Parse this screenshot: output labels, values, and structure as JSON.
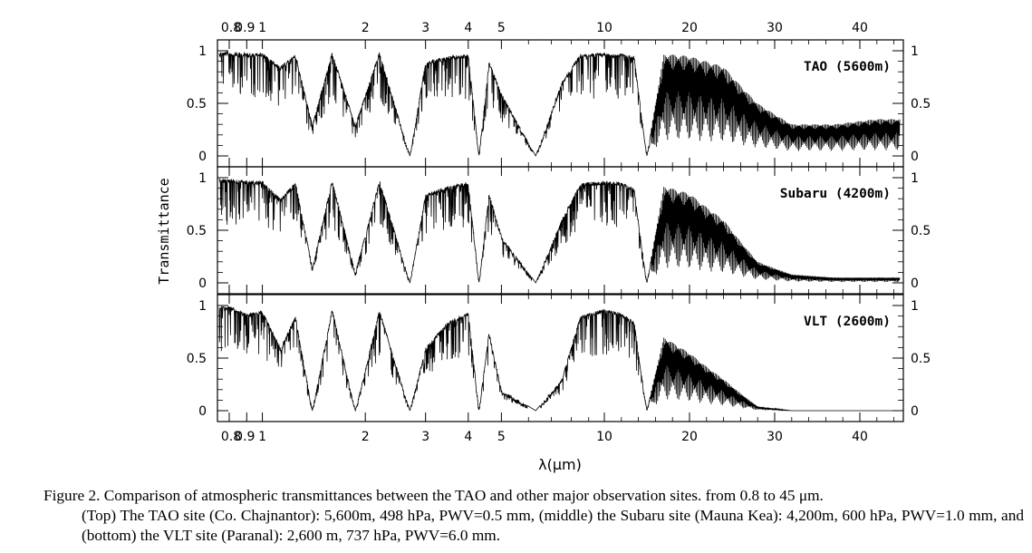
{
  "chart_data": {
    "type": "line",
    "ylabel": "Transmittance",
    "xlabel": "λ(μm)",
    "x_scale": "piecewise: logarithmic 0.8–10 μm, linear 10–45 μm",
    "xlim": [
      0.8,
      45
    ],
    "ylim": [
      0,
      1
    ],
    "x_tick_labels": [
      {
        "value": 0.8,
        "label": "0.8"
      },
      {
        "value": 0.9,
        "label": "0.9"
      },
      {
        "value": 1,
        "label": "1"
      },
      {
        "value": 2,
        "label": "2"
      },
      {
        "value": 3,
        "label": "3"
      },
      {
        "value": 4,
        "label": "4"
      },
      {
        "value": 5,
        "label": "5"
      },
      {
        "value": 10,
        "label": "10"
      },
      {
        "value": 20,
        "label": "20"
      },
      {
        "value": 30,
        "label": "30"
      },
      {
        "value": 40,
        "label": "40"
      }
    ],
    "y_tick_labels": [
      "0",
      "0.5",
      "1"
    ],
    "panels": [
      {
        "name": "TAO (5600m)",
        "series": [
          {
            "x": [
              0.8,
              0.9,
              1.0,
              1.13,
              1.25,
              1.4,
              1.6,
              1.87,
              2.2,
              2.7,
              3.0,
              3.5,
              4.0,
              4.3,
              4.6,
              5.0,
              6.3,
              7.5,
              8.5,
              10,
              12,
              13.5,
              15,
              17,
              20,
              24,
              28,
              32,
              37,
              42
            ],
            "y": [
              0.99,
              0.98,
              0.98,
              0.85,
              0.97,
              0.3,
              0.99,
              0.3,
              0.99,
              0.0,
              0.9,
              0.95,
              0.97,
              0.0,
              0.9,
              0.6,
              0.0,
              0.7,
              0.97,
              0.98,
              0.97,
              0.95,
              0.0,
              0.97,
              0.95,
              0.85,
              0.5,
              0.3,
              0.3,
              0.35
            ]
          }
        ]
      },
      {
        "name": "Subaru (4200m)",
        "series": [
          {
            "x": [
              0.8,
              0.9,
              1.0,
              1.13,
              1.25,
              1.4,
              1.6,
              1.87,
              2.2,
              2.7,
              3.0,
              3.5,
              4.0,
              4.3,
              4.6,
              5.0,
              6.3,
              7.5,
              8.5,
              10,
              12,
              13.5,
              15,
              17,
              20,
              24,
              28,
              32,
              37,
              42
            ],
            "y": [
              0.99,
              0.97,
              0.97,
              0.8,
              0.96,
              0.15,
              0.98,
              0.1,
              0.98,
              0.0,
              0.85,
              0.92,
              0.96,
              0.0,
              0.85,
              0.45,
              0.0,
              0.6,
              0.95,
              0.97,
              0.96,
              0.9,
              0.0,
              0.92,
              0.85,
              0.6,
              0.2,
              0.08,
              0.05,
              0.05
            ]
          }
        ]
      },
      {
        "name": "VLT (2600m)",
        "series": [
          {
            "x": [
              0.8,
              0.9,
              1.0,
              1.13,
              1.25,
              1.4,
              1.6,
              1.87,
              2.2,
              2.7,
              3.0,
              3.5,
              4.0,
              4.3,
              4.6,
              5.0,
              6.3,
              7.5,
              8.5,
              10,
              12,
              13.5,
              15,
              17,
              20,
              24,
              28,
              32,
              37,
              42
            ],
            "y": [
              0.99,
              0.93,
              0.95,
              0.6,
              0.9,
              0.0,
              0.97,
              0.0,
              0.96,
              0.0,
              0.6,
              0.85,
              0.94,
              0.0,
              0.75,
              0.2,
              0.0,
              0.3,
              0.9,
              0.97,
              0.93,
              0.85,
              0.0,
              0.7,
              0.55,
              0.3,
              0.04,
              0.0,
              0.0,
              0.0
            ]
          }
        ]
      }
    ]
  },
  "caption": {
    "first_line": "Figure 2. Comparison of atmospheric transmittances between the TAO and other major observation sites. from 0.8 to 45 μm.",
    "rest": "(Top) The TAO site (Co. Chajnantor): 5,600m, 498 hPa, PWV=0.5 mm, (middle) the Subaru site (Mauna Kea): 4,200m, 600 hPa, PWV=1.0 mm, and (bottom) the VLT site (Paranal): 2,600 m, 737 hPa, PWV=6.0 mm."
  }
}
